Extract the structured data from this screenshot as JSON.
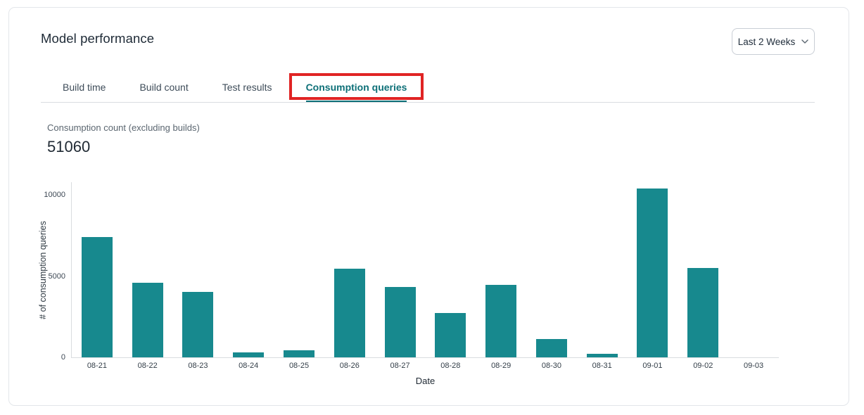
{
  "header": {
    "title": "Model performance",
    "date_range": {
      "value": "Last 2 Weeks"
    }
  },
  "tabs": [
    {
      "label": "Build time",
      "active": false
    },
    {
      "label": "Build count",
      "active": false
    },
    {
      "label": "Test results",
      "active": false
    },
    {
      "label": "Consumption queries",
      "active": true
    }
  ],
  "annotation": {
    "type": "highlight-box",
    "color": "#e02424",
    "target": "Consumption queries tab"
  },
  "metric": {
    "label": "Consumption count (excluding builds)",
    "value": "51060"
  },
  "chart_data": {
    "type": "bar",
    "title": "",
    "xlabel": "Date",
    "ylabel": "# of consumption queries",
    "categories": [
      "08-21",
      "08-22",
      "08-23",
      "08-24",
      "08-25",
      "08-26",
      "08-27",
      "08-28",
      "08-29",
      "08-30",
      "08-31",
      "09-01",
      "09-02",
      "09-03"
    ],
    "values": [
      7400,
      4600,
      4050,
      320,
      430,
      5480,
      4350,
      2720,
      4450,
      1130,
      210,
      10420,
      5500,
      0
    ],
    "total": 51060,
    "ylim": [
      0,
      10800
    ],
    "y_ticks": [
      0,
      5000,
      10000
    ],
    "bar_color": "#17898e",
    "grid": false,
    "legend": false
  },
  "colors": {
    "accent_teal": "#0e7078",
    "bar_teal": "#17898e",
    "annotation_red": "#e02424",
    "text_dark": "#1e2a36",
    "text_gray": "#5b6670",
    "border_gray": "#dadde1"
  }
}
